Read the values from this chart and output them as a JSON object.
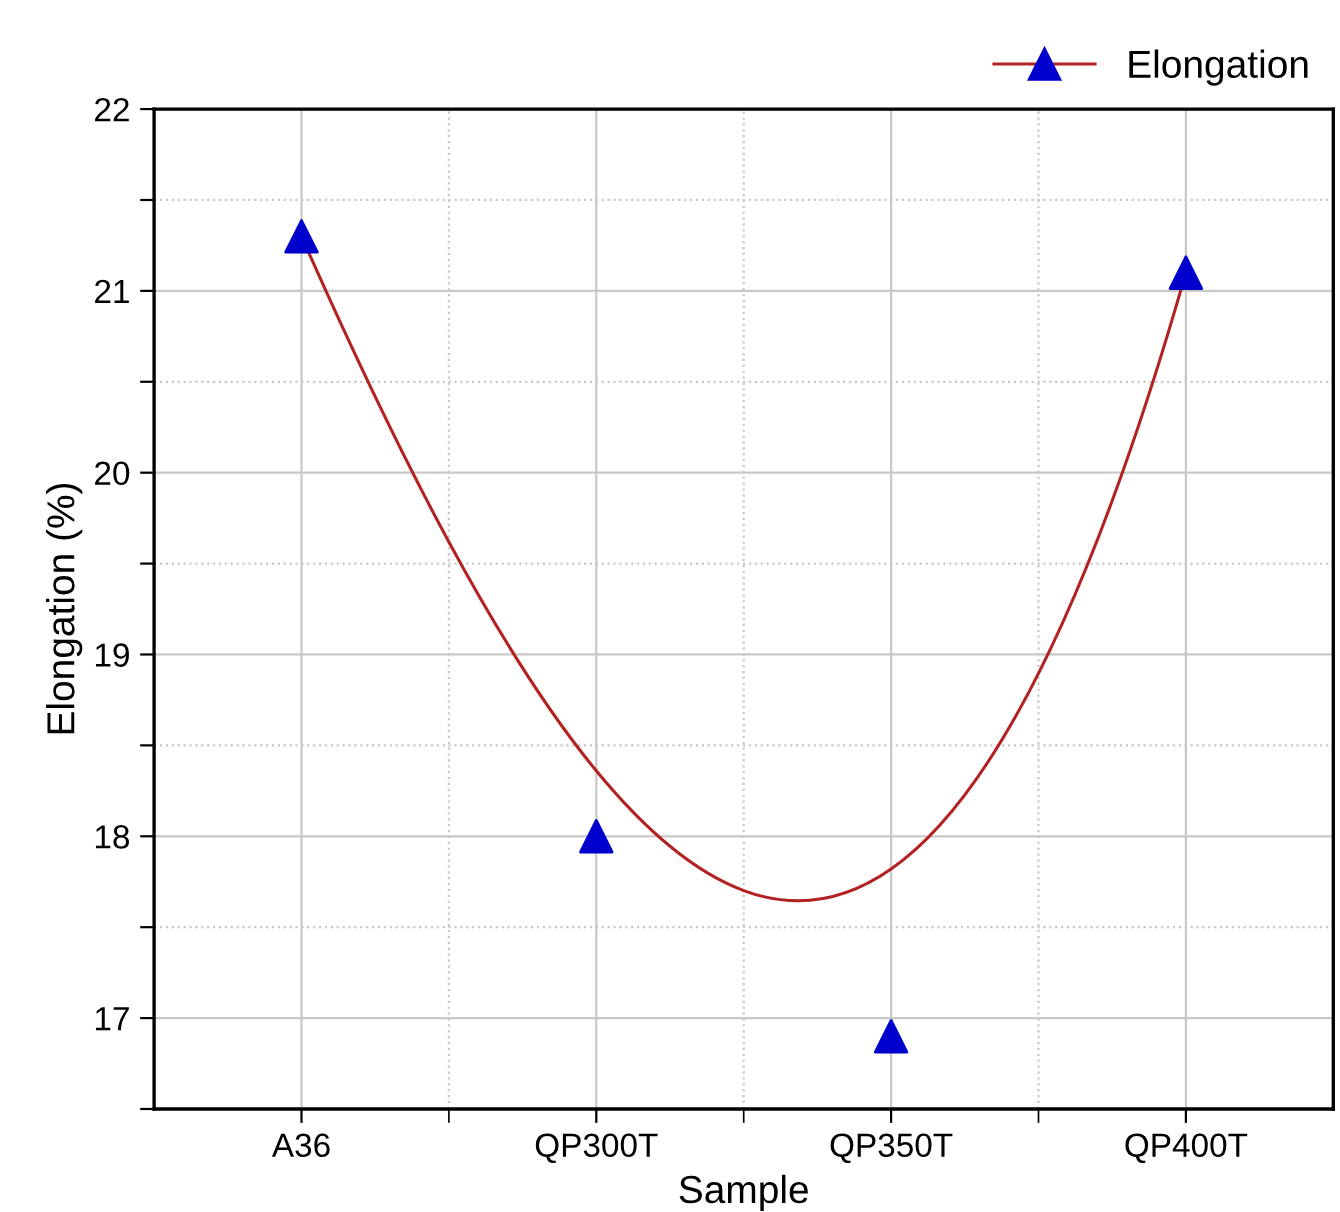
{
  "chart_data": {
    "type": "scatter",
    "xlabel": "Sample",
    "ylabel": "Elongation (%)",
    "categories": [
      "A36",
      "QP300T",
      "QP350T",
      "QP400T"
    ],
    "ylim": [
      16.5,
      22
    ],
    "yticks": [
      {
        "value": 16.5,
        "label": null
      },
      17,
      {
        "value": 17.5,
        "label": null
      },
      18,
      {
        "value": 18.5,
        "label": null
      },
      19,
      {
        "value": 19.5,
        "label": null
      },
      20,
      {
        "value": 20.5,
        "label": null
      },
      21,
      {
        "value": 21.5,
        "label": null
      },
      22
    ],
    "grid": true,
    "legend": "top right",
    "marker": "triangle",
    "series": [
      {
        "type": "line",
        "color": "#b22222",
        "marker": "none",
        "values": [
          21.3,
          18.36,
          17.82,
          21.1
        ]
      },
      {
        "name": "Elongation",
        "color": "#0000cc",
        "values": [
          21.3,
          18.0,
          16.9,
          21.1
        ]
      }
    ]
  }
}
